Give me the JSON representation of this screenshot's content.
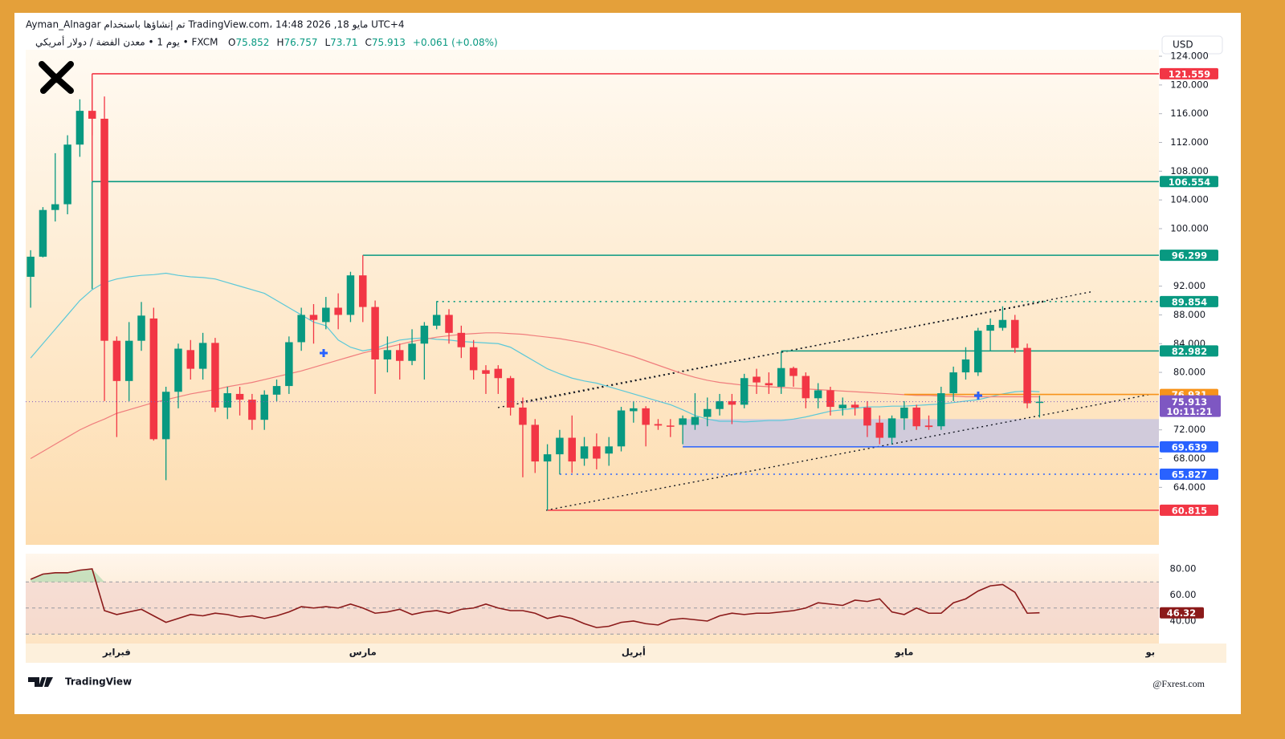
{
  "header": {
    "line1": "Ayman_Alnagar تم إنشاؤها باستخدام TradingView.com، 14:48 2026 ,18 مايو UTC+4",
    "symbol": "يوم 1 • معدن الفضة / دولار أمريكي • FXCM",
    "ohlc_letters": [
      "O",
      "H",
      "L",
      "C"
    ],
    "change": "+0.061 (+0.08%)",
    "currency": "USD"
  },
  "chart_data": [
    {
      "type": "candlestick",
      "up_color": "#089981",
      "down_color": "#f23645",
      "open": [
        93.3,
        96.1,
        102.6,
        103.4,
        111.7,
        116.4,
        115.3,
        84.4,
        78.8,
        84.4,
        87.5,
        70.7,
        77.3,
        83.1,
        80.5,
        84.1,
        75.1,
        77,
        76.2,
        73.4,
        76.9,
        78.1,
        84.2,
        88,
        87,
        89,
        88,
        93.5,
        89.1,
        81.8,
        83.1,
        81.6,
        84,
        86.5,
        88,
        85.5,
        83.5,
        80.3,
        80.5,
        79.2,
        75.1,
        72.7,
        67.6,
        68.6,
        70.9,
        68,
        69.7,
        68.7,
        69.7,
        74.6,
        75,
        72.8,
        72.6,
        72.7,
        72.7,
        73.8,
        74.9,
        76,
        75.5,
        79.4,
        78.5,
        78,
        80.6,
        79.5,
        76.4,
        77.5,
        75,
        75.5,
        75.1,
        73,
        70.9,
        73.6,
        75.1,
        72.6,
        72.5,
        77.1,
        80,
        80,
        85.8,
        86.2,
        87.3,
        83.4,
        75.852
      ],
      "high": [
        97,
        103,
        110.5,
        113,
        118,
        120.9,
        118.4,
        85,
        87,
        89.8,
        89,
        78,
        84,
        84.5,
        85.5,
        84.8,
        78,
        78,
        77,
        77.5,
        79,
        85,
        89,
        89.5,
        90.5,
        91,
        94,
        96.3,
        90,
        85,
        84,
        86,
        87,
        89.9,
        88.8,
        86.5,
        84.5,
        81,
        81,
        79.5,
        76.5,
        73.5,
        70,
        72,
        74,
        71,
        71.5,
        71,
        75.2,
        76,
        75.3,
        73.5,
        73.5,
        74,
        77.1,
        76.5,
        77,
        77,
        79.8,
        80.5,
        80,
        82.9,
        80.8,
        80,
        78.5,
        78,
        76.5,
        76,
        76,
        74,
        74,
        76,
        75.5,
        74,
        78,
        80.8,
        83.5,
        86.2,
        87.5,
        89.2,
        88,
        84,
        76.757
      ],
      "low": [
        89,
        96,
        101,
        102,
        110,
        113,
        76,
        71,
        76,
        83,
        70.5,
        65,
        75,
        79,
        79,
        74.5,
        73.5,
        74,
        72,
        72,
        76,
        77,
        83,
        84,
        86,
        86,
        87,
        87,
        77,
        80,
        79,
        81,
        79,
        86,
        84,
        82,
        79,
        77,
        77,
        74,
        65.4,
        66,
        60.8,
        65.8,
        66,
        67,
        66.5,
        67,
        69,
        73,
        69.7,
        72,
        71,
        70,
        72,
        72.5,
        74,
        72.8,
        75,
        77,
        77,
        77,
        78,
        75,
        75,
        74,
        74,
        74,
        71,
        70,
        70,
        72,
        72,
        72,
        72,
        76,
        79,
        79.5,
        83,
        85.8,
        82.7,
        75,
        73.71
      ],
      "close": [
        96.1,
        102.6,
        103.4,
        111.7,
        116.4,
        115.3,
        84.4,
        78.8,
        84.4,
        87.9,
        70.7,
        77.3,
        83.3,
        80.5,
        84.1,
        75.1,
        77.1,
        76.2,
        73.4,
        76.9,
        78.1,
        84.2,
        88,
        87.3,
        89,
        88,
        93.5,
        89.1,
        81.8,
        83.1,
        81.6,
        84,
        86.5,
        88,
        85.5,
        83.5,
        80.3,
        79.8,
        79.2,
        75.1,
        72.7,
        67.6,
        68.6,
        70.9,
        67.6,
        69.7,
        68,
        69.7,
        74.7,
        75,
        72.7,
        72.6,
        72.5,
        73.6,
        73.8,
        74.9,
        76,
        75.5,
        79.2,
        78.6,
        78.2,
        80.6,
        79.5,
        76.4,
        77.5,
        75.2,
        75.5,
        75.1,
        72.6,
        70.9,
        73.6,
        75.1,
        72.5,
        72.4,
        77.1,
        80,
        81.8,
        85.8,
        86.6,
        87.3,
        83.4,
        75.7,
        75.913
      ],
      "series": [
        {
          "color": "#5bc8d8",
          "values": [
            82,
            84,
            86,
            88,
            90,
            91.5,
            92.5,
            93,
            93.3,
            93.5,
            93.6,
            93.8,
            93.5,
            93.3,
            93.2,
            93,
            92.5,
            92,
            91.5,
            91,
            90,
            89,
            88,
            87,
            86.5,
            84.5,
            83.5,
            83,
            83.3,
            84,
            84.5,
            84.7,
            84.8,
            84.6,
            84.5,
            84.3,
            84.2,
            84.1,
            84,
            83.5,
            82.5,
            81.5,
            80.5,
            79.8,
            79.2,
            78.8,
            78.5,
            78,
            77.5,
            77,
            76.5,
            76,
            75.5,
            74.8,
            74,
            73.5,
            73.2,
            73.2,
            73.1,
            73.2,
            73.3,
            73.3,
            73.5,
            73.8,
            74.2,
            74.6,
            74.8,
            75,
            75.2,
            75.2,
            75.3,
            75.3,
            75.4,
            75.5,
            75.6,
            75.8,
            76,
            76.2,
            76.6,
            77,
            77.3,
            77.4,
            77.3
          ]
        },
        {
          "color": "#f07d7d",
          "values": [
            68,
            69,
            70,
            71,
            72,
            72.8,
            73.5,
            74.3,
            74.8,
            75.3,
            75.8,
            76.2,
            76.6,
            77,
            77.3,
            77.6,
            78,
            78.3,
            78.6,
            79,
            79.4,
            79.8,
            80.2,
            80.7,
            81.2,
            81.7,
            82.2,
            82.7,
            83.1,
            83.5,
            83.9,
            84.3,
            84.6,
            84.9,
            85.1,
            85.3,
            85.4,
            85.5,
            85.5,
            85.4,
            85.3,
            85.1,
            84.9,
            84.7,
            84.4,
            84.1,
            83.7,
            83.2,
            82.7,
            82.2,
            81.6,
            81,
            80.4,
            79.8,
            79.3,
            78.9,
            78.6,
            78.4,
            78.2,
            78.1,
            78,
            77.9,
            77.8,
            77.7,
            77.6,
            77.5,
            77.4,
            77.3,
            77.2,
            77.1,
            77,
            76.9,
            76.8,
            76.8,
            76.7,
            76.7,
            76.6,
            76.6,
            76.6,
            76.6,
            76.6,
            76.6,
            76.6
          ]
        }
      ],
      "levels": [
        {
          "value": 121.559,
          "color": "#f23645",
          "style": "solid"
        },
        {
          "value": 106.554,
          "color": "#089981",
          "style": "solid"
        },
        {
          "value": 96.299,
          "color": "#089981",
          "style": "solid"
        },
        {
          "value": 89.854,
          "color": "#089981",
          "style": "dotted"
        },
        {
          "value": 82.982,
          "color": "#089981",
          "style": "solid"
        },
        {
          "value": 76.931,
          "color": "#f7931a",
          "style": "solid"
        },
        {
          "value": 69.639,
          "color": "#2962ff",
          "style": "solid"
        },
        {
          "value": 65.827,
          "color": "#2962ff",
          "style": "dotted"
        },
        {
          "value": 60.815,
          "color": "#f23645",
          "style": "solid"
        }
      ],
      "zone": {
        "from": 69.639,
        "to": 73.5,
        "color": "#c9c7e0"
      },
      "price_color": "#7e57c2",
      "countdown": "10:11:21",
      "xlim": [
        -0.4,
        91.7
      ],
      "ylim": [
        56,
        124.9
      ],
      "xticks": [
        {
          "value": 7,
          "label": "فبراير"
        },
        {
          "value": 27,
          "label": "مارس"
        },
        {
          "value": 49,
          "label": "أبريل"
        },
        {
          "value": 71,
          "label": "مايو"
        },
        {
          "value": 91,
          "label": "بو"
        }
      ],
      "yticks": [
        {
          "value": 64,
          "label": "64.000"
        },
        {
          "value": 68,
          "label": "68.000"
        },
        {
          "value": 72,
          "label": "72.000"
        },
        {
          "value": 80,
          "label": "80.000"
        },
        {
          "value": 84,
          "label": "84.000"
        },
        {
          "value": 88,
          "label": "88.000"
        },
        {
          "value": 92,
          "label": "92.000"
        },
        {
          "value": 100,
          "label": "100.000"
        },
        {
          "value": 104,
          "label": "104.000"
        },
        {
          "value": 108,
          "label": "108.000"
        },
        {
          "value": 112,
          "label": "112.000"
        },
        {
          "value": 116,
          "label": "116.000"
        },
        {
          "value": 120,
          "label": "120.000"
        },
        {
          "value": 124,
          "label": "124.000"
        }
      ]
    },
    {
      "type": "rsi",
      "color": "#8b1a1a",
      "values": [
        72,
        76,
        77,
        77,
        79,
        80,
        48,
        45,
        47,
        49,
        44,
        39,
        42,
        45,
        44,
        46,
        45,
        43,
        44,
        42,
        44,
        47,
        51,
        50,
        51,
        50,
        53,
        50,
        46,
        47,
        49,
        45,
        47,
        48,
        46,
        49,
        50,
        53,
        50,
        48,
        48,
        46,
        42,
        44,
        42,
        38,
        35,
        36,
        39,
        40,
        38,
        37,
        41,
        42,
        41,
        40,
        44,
        46,
        45,
        46,
        46,
        47,
        48,
        50,
        54,
        53,
        52,
        56,
        55,
        57,
        47,
        45,
        50,
        46,
        46,
        54,
        57,
        63,
        67,
        68,
        62,
        46,
        46.32
      ],
      "value_labels": {
        "last": "46.32"
      },
      "bands": [
        30,
        50,
        70
      ],
      "band_color": "#f2d6d0",
      "xlim": [
        -0.4,
        91.7
      ],
      "ylim": [
        24,
        88.6
      ],
      "yticks": [
        {
          "value": 40,
          "label": "40.00"
        },
        {
          "value": 60,
          "label": "60.00"
        },
        {
          "value": 80,
          "label": "80.00"
        }
      ]
    }
  ],
  "footer": {
    "brand": "TradingView",
    "watermark": "@Fxrest.com"
  }
}
